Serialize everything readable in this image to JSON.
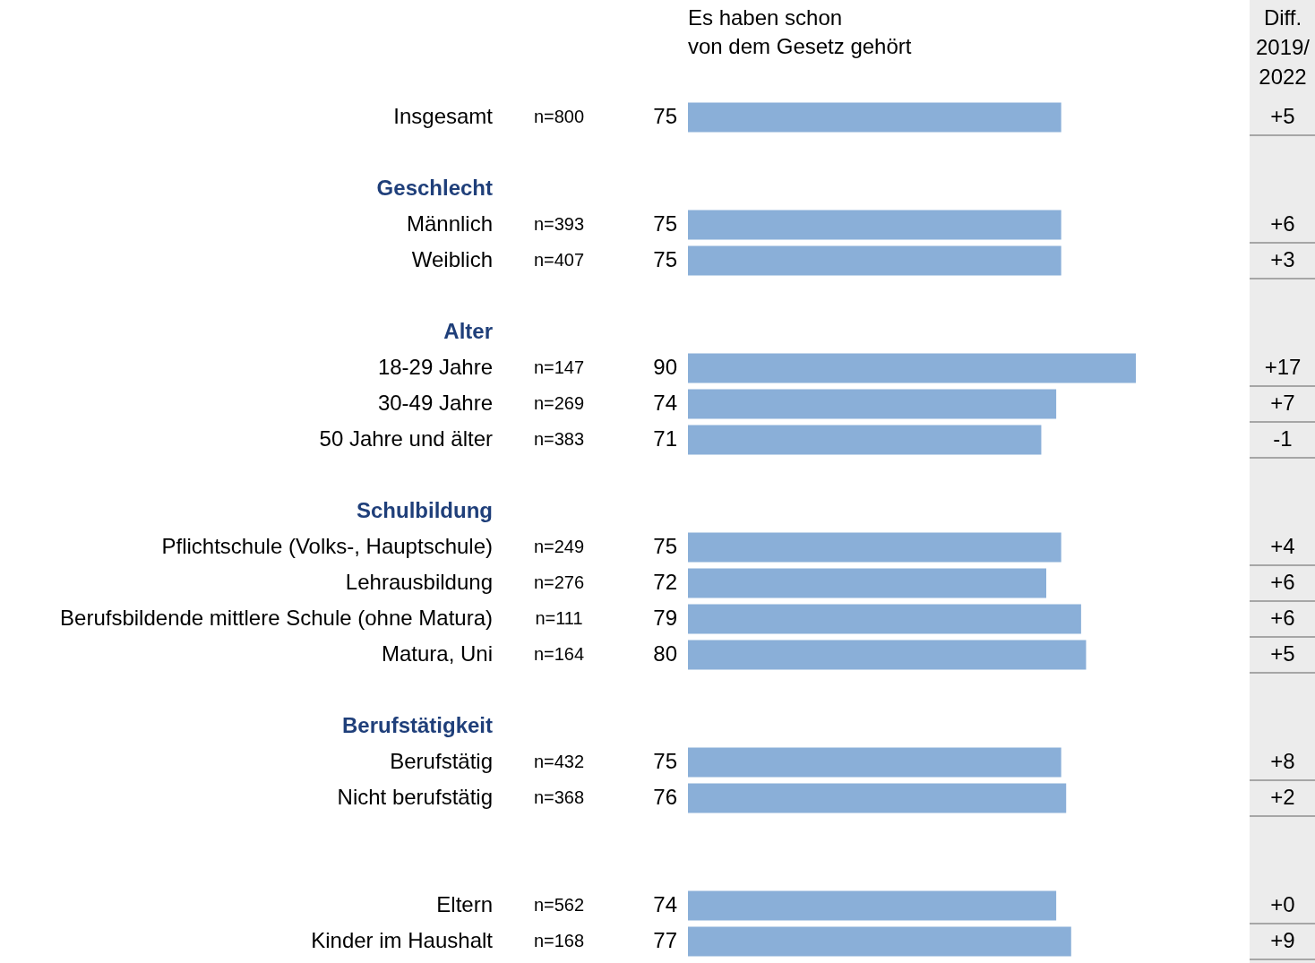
{
  "chart_data": {
    "type": "bar",
    "orientation": "horizontal",
    "title": "Es haben schon\nvon dem Gesetz gehört",
    "categories": [
      "Insgesamt",
      null,
      "Geschlecht",
      "Männlich",
      "Weiblich",
      null,
      "Alter",
      "18-29 Jahre",
      "30-49 Jahre",
      "50 Jahre und älter",
      null,
      "Schulbildung",
      "Pflichtschule (Volks-, Hauptschule)",
      "Lehrausbildung",
      "Berufsbildende mittlere Schule (ohne Matura)",
      "Matura, Uni",
      null,
      "Berufstätigkeit",
      "Berufstätig",
      "Nicht berufstätig",
      null,
      null,
      "Eltern",
      "Kinder im Haushalt"
    ],
    "values": [
      75,
      null,
      null,
      75,
      75,
      null,
      null,
      90,
      74,
      71,
      null,
      null,
      75,
      72,
      79,
      80,
      null,
      null,
      75,
      76,
      null,
      null,
      74,
      77
    ],
    "color": "#8aafd8",
    "data_labels": true,
    "tick_labels": false,
    "legend": false,
    "annotations": [
      "Diff.\n2019/\n2022",
      "n=800",
      "n=393",
      "n=407",
      "n=147",
      "n=269",
      "n=383",
      "n=249",
      "n=276",
      "n=111",
      "n=164",
      "n=432",
      "n=368",
      "n=562",
      "n=168",
      "+5",
      "+6",
      "+3",
      "+17",
      "+7",
      "-1",
      "+4",
      "+6",
      "+6",
      "+5",
      "+8",
      "+2",
      "+0",
      "+9"
    ]
  }
}
